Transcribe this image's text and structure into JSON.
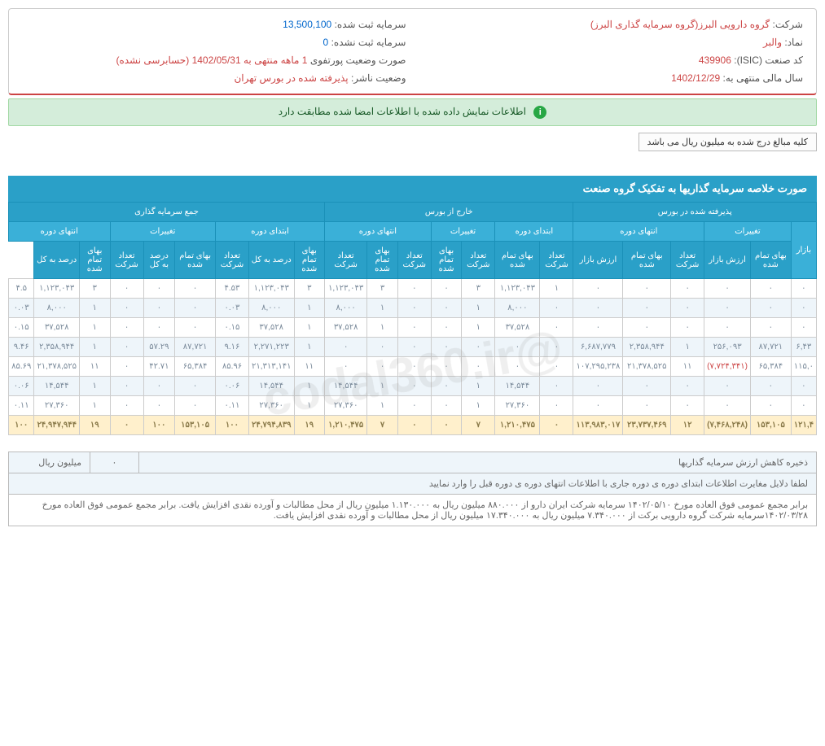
{
  "header": {
    "company_label": "شرکت:",
    "company_value": "گروه دارویی البرز(گروه سرمایه گذاری البرز)",
    "capital_reg_label": "سرمایه ثبت شده:",
    "capital_reg_value": "13,500,100",
    "symbol_label": "نماد:",
    "symbol_value": "والبر",
    "capital_unreg_label": "سرمایه ثبت نشده:",
    "capital_unreg_value": "0",
    "isic_label": "کد صنعت (ISIC):",
    "isic_value": "439906",
    "portfolio_label": "صورت وضعیت پورتفوی",
    "portfolio_value": "1 ماهه منتهی به 1402/05/31 (حسابرسی نشده)",
    "fiscal_label": "سال مالی منتهی به:",
    "fiscal_value": "1402/12/29",
    "publisher_label": "وضعیت ناشر:",
    "publisher_value": "پذیرفته شده در بورس تهران"
  },
  "alert": {
    "text": "اطلاعات نمایش داده شده با اطلاعات امضا شده مطابقت دارد",
    "icon": "i"
  },
  "note": "کلیه مبالغ درج شده به میلیون ریال می باشد",
  "section_title": "صورت خلاصه سرمایه گذاریها به تفکیک گروه صنعت",
  "thead": {
    "g1": "پذیرفته شده در بورس",
    "g2": "خارج از بورس",
    "g3": "جمع سرمایه گذاری",
    "s_bazar": "بازار",
    "s_taghirat": "تغییرات",
    "s_entehaye": "انتهای دوره",
    "s_ebtedaye": "ابتدای دوره",
    "c_bahaye": "بهای تمام شده",
    "c_arzesh": "ارزش بازار",
    "c_tedad": "تعداد شرکت",
    "c_darsad": "درصد به کل"
  },
  "rows": [
    {
      "alt": false,
      "cells": [
        "۰",
        "۰",
        "۰",
        "۰",
        "۰",
        "۰",
        "۱",
        "۱,۱۲۳,۰۴۳",
        "۳",
        "۰",
        "۰",
        "۳",
        "۱,۱۲۳,۰۴۳",
        "۳",
        "۱,۱۲۳,۰۴۳",
        "۴.۵۳",
        "۰",
        "۰",
        "۰",
        "۳",
        "۱,۱۲۳,۰۴۳",
        "۴.۵"
      ]
    },
    {
      "alt": true,
      "cells": [
        "۰",
        "۰",
        "۰",
        "۰",
        "۰",
        "۰",
        "۰",
        "۸,۰۰۰",
        "۱",
        "۰",
        "۰",
        "۱",
        "۸,۰۰۰",
        "۱",
        "۸,۰۰۰",
        "۰.۰۳",
        "۰",
        "۰",
        "۰",
        "۱",
        "۸,۰۰۰",
        "۰.۰۳"
      ]
    },
    {
      "alt": false,
      "cells": [
        "۰",
        "۰",
        "۰",
        "۰",
        "۰",
        "۰",
        "۰",
        "۳۷,۵۲۸",
        "۱",
        "۰",
        "۰",
        "۱",
        "۳۷,۵۲۸",
        "۱",
        "۳۷,۵۲۸",
        "۰.۱۵",
        "۰",
        "۰",
        "۰",
        "۱",
        "۳۷,۵۲۸",
        "۰.۱۵"
      ]
    },
    {
      "alt": true,
      "cells": [
        "۶,۴۳",
        "۸۷,۷۲۱",
        "۲۵۶,۰۹۳",
        "۱",
        "۲,۳۵۸,۹۴۴",
        "۶,۶۸۷,۷۷۹",
        "۰",
        "۰",
        "۰",
        "۰",
        "۰",
        "۰",
        "۰",
        "۱",
        "۲,۲۷۱,۲۲۳",
        "۹.۱۶",
        "۸۷,۷۲۱",
        "۵۷.۲۹",
        "۰",
        "۱",
        "۲,۳۵۸,۹۴۴",
        "۹.۴۶"
      ]
    },
    {
      "alt": false,
      "cells": [
        "۱۱۵,۰",
        "۶۵,۳۸۴",
        "(۷,۷۲۴,۳۴۱)",
        "۱۱",
        "۲۱,۳۷۸,۵۲۵",
        "۱۰۷,۲۹۵,۲۳۸",
        "۰",
        "۰",
        "۰",
        "۰",
        "۰",
        "۰",
        "۰",
        "۱۱",
        "۲۱,۳۱۳,۱۴۱",
        "۸۵.۹۶",
        "۶۵,۳۸۴",
        "۴۲.۷۱",
        "۰",
        "۱۱",
        "۲۱,۳۷۸,۵۲۵",
        "۸۵.۶۹"
      ],
      "neg": [
        2
      ]
    },
    {
      "alt": true,
      "cells": [
        "۰",
        "۰",
        "۰",
        "۰",
        "۰",
        "۰",
        "۰",
        "۱۴,۵۴۴",
        "۱",
        "۰",
        "۰",
        "۱",
        "۱۴,۵۴۴",
        "۱",
        "۱۴,۵۴۴",
        "۰.۰۶",
        "۰",
        "۰",
        "۰",
        "۱",
        "۱۴,۵۴۴",
        "۰.۰۶"
      ]
    },
    {
      "alt": false,
      "cells": [
        "۰",
        "۰",
        "۰",
        "۰",
        "۰",
        "۰",
        "۰",
        "۲۷,۳۶۰",
        "۱",
        "۰",
        "۰",
        "۱",
        "۲۷,۳۶۰",
        "۱",
        "۲۷,۳۶۰",
        "۰.۱۱",
        "۰",
        "۰",
        "۰",
        "۱",
        "۲۷,۳۶۰",
        "۰.۱۱"
      ]
    }
  ],
  "total": {
    "cells": [
      "۱۲۱,۴",
      "۱۵۳,۱۰۵",
      "(۷,۴۶۸,۲۴۸)",
      "۱۲",
      "۲۳,۷۳۷,۴۶۹",
      "۱۱۳,۹۸۳,۰۱۷",
      "۰",
      "۱,۲۱۰,۴۷۵",
      "۷",
      "۰",
      "۰",
      "۷",
      "۱,۲۱۰,۴۷۵",
      "۱۹",
      "۲۴,۷۹۴,۸۳۹",
      "۱۰۰",
      "۱۵۳,۱۰۵",
      "۱۰۰",
      "۰",
      "۱۹",
      "۲۴,۹۴۷,۹۴۴",
      "۱۰۰"
    ],
    "neg": [
      2
    ]
  },
  "footer": {
    "r1_label": "ذخیره کاهش ارزش سرمایه گذاریها",
    "r1_val": "۰",
    "r1_unit": "میلیون ریال",
    "r2": "لطفا دلایل مغایرت اطلاعات ابتدای دوره ی دوره جاری با اطلاعات انتهای دوره ی دوره قبل را وارد نمایید",
    "r3": "برابر مجمع عمومی فوق العاده مورخ ۱۴۰۲/۰۵/۱۰ سرمایه شرکت ایران دارو از ۸۸۰.۰۰۰ میلیون ریال به ۱.۱۳۰.۰۰۰ میلیون ریال از محل مطالبات و آورده نقدی افزایش یافت. برابر مجمع عمومی فوق العاده مورخ ۱۴۰۲/۰۳/۲۸سرمایه شرکت گروه دارویی برکت از ۷.۳۴۰.۰۰۰ میلیون ریال به ۱۷.۳۴۰.۰۰۰ میلیون ریال از محل مطالبات و آورده نقدی افزایش یافت."
  },
  "watermark": "@codal360.ir"
}
